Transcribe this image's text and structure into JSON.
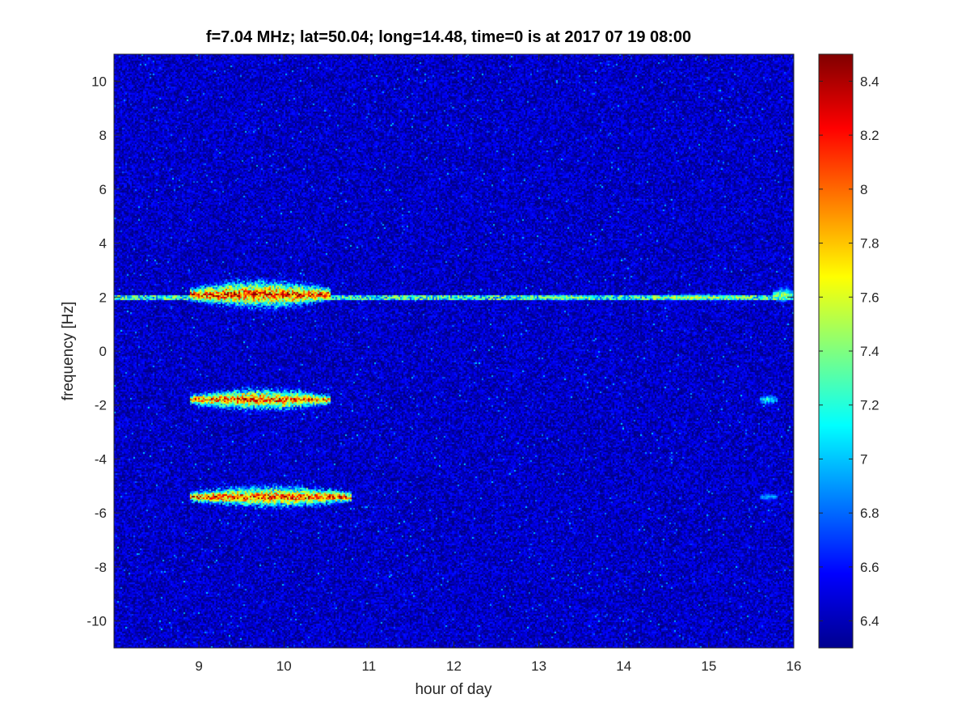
{
  "chart_data": {
    "type": "heatmap",
    "title": "f=7.04 MHz;  lat=50.04; long=14.48, time=0 is at 2017 07 19 08:00",
    "xlabel": "hour of day",
    "ylabel": "frequency [Hz]",
    "xlim": [
      8,
      16
    ],
    "ylim": [
      -11,
      11
    ],
    "x_ticks": [
      9,
      10,
      11,
      12,
      13,
      14,
      15,
      16
    ],
    "y_ticks": [
      -10,
      -8,
      -6,
      -4,
      -2,
      0,
      2,
      4,
      6,
      8,
      10
    ],
    "colormap": "jet",
    "colorbar": {
      "range": [
        6.3,
        8.5
      ],
      "ticks": [
        6.4,
        6.6,
        6.8,
        7,
        7.2,
        7.4,
        7.6,
        7.8,
        8,
        8.2,
        8.4
      ]
    },
    "background_level": 6.45,
    "features": [
      {
        "kind": "line",
        "freq": 2.0,
        "x_start": 8.0,
        "x_end": 16.0,
        "level": 7.6
      },
      {
        "kind": "blob",
        "freq": 2.1,
        "x_start": 8.9,
        "x_end": 10.55,
        "spread": 0.45,
        "level": 8.35
      },
      {
        "kind": "blob",
        "freq": 2.0,
        "x_start": 13.0,
        "x_end": 13.6,
        "spread": 0.1,
        "level": 7.5
      },
      {
        "kind": "blob",
        "freq": 2.0,
        "x_start": 14.3,
        "x_end": 15.5,
        "spread": 0.1,
        "level": 7.6
      },
      {
        "kind": "blob",
        "freq": 2.1,
        "x_start": 15.75,
        "x_end": 16.0,
        "spread": 0.25,
        "level": 7.5
      },
      {
        "kind": "blob",
        "freq": -1.8,
        "x_start": 8.9,
        "x_end": 10.55,
        "spread": 0.35,
        "level": 8.35
      },
      {
        "kind": "blob",
        "freq": -1.8,
        "x_start": 15.6,
        "x_end": 15.8,
        "spread": 0.2,
        "level": 7.3
      },
      {
        "kind": "blob",
        "freq": -5.4,
        "x_start": 8.9,
        "x_end": 10.8,
        "spread": 0.35,
        "level": 8.35
      },
      {
        "kind": "blob",
        "freq": -5.4,
        "x_start": 15.6,
        "x_end": 15.8,
        "spread": 0.15,
        "level": 7.0
      }
    ]
  }
}
